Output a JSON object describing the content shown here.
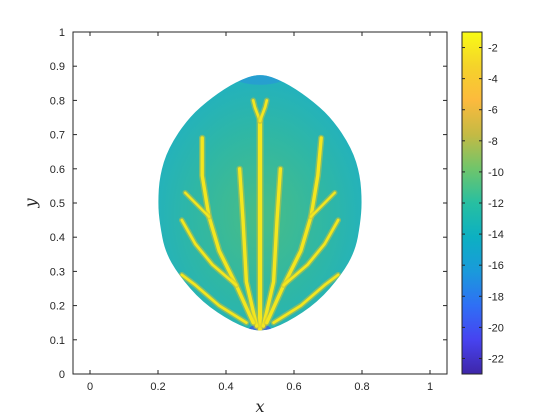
{
  "chart_data": {
    "type": "heatmap",
    "title": "",
    "xlabel": "x",
    "ylabel": "y",
    "xlim": [
      -0.05,
      1.05
    ],
    "ylim": [
      0,
      1
    ],
    "x_ticks": [
      0,
      0.2,
      0.4,
      0.6,
      0.8,
      1
    ],
    "y_ticks": [
      0,
      0.1,
      0.2,
      0.3,
      0.4,
      0.5,
      0.6,
      0.7,
      0.8,
      0.9,
      1
    ],
    "x_tick_labels": [
      "0",
      "0.2",
      "0.4",
      "0.6",
      "0.8",
      "1"
    ],
    "y_tick_labels": [
      "0",
      "0.1",
      "0.2",
      "0.3",
      "0.4",
      "0.5",
      "0.6",
      "0.7",
      "0.8",
      "0.9",
      "1"
    ],
    "colorbar": {
      "colormap": "parula",
      "clim": [
        -23,
        -1
      ],
      "ticks": [
        -2,
        -4,
        -6,
        -8,
        -10,
        -12,
        -14,
        -16,
        -18,
        -20,
        -22
      ],
      "tick_labels": [
        "-2",
        "-4",
        "-6",
        "-8",
        "-10",
        "-12",
        "-14",
        "-16",
        "-18",
        "-20",
        "-22"
      ],
      "colors": [
        "#3e26a8",
        "#4743f0",
        "#2f6ff5",
        "#1a9adb",
        "#0cb0c2",
        "#27bfa1",
        "#6fc56b",
        "#c4ba44",
        "#fcba3d",
        "#f5d32a",
        "#f9fb15"
      ]
    },
    "region": {
      "shape": "leaf-shaped domain",
      "boundary": [
        [
          0.5,
          0.12
        ],
        [
          0.42,
          0.15
        ],
        [
          0.33,
          0.21
        ],
        [
          0.26,
          0.29
        ],
        [
          0.22,
          0.36
        ],
        [
          0.205,
          0.44
        ],
        [
          0.2,
          0.5
        ],
        [
          0.205,
          0.58
        ],
        [
          0.23,
          0.66
        ],
        [
          0.29,
          0.75
        ],
        [
          0.36,
          0.81
        ],
        [
          0.43,
          0.855
        ],
        [
          0.5,
          0.88
        ],
        [
          0.57,
          0.855
        ],
        [
          0.64,
          0.81
        ],
        [
          0.71,
          0.75
        ],
        [
          0.77,
          0.66
        ],
        [
          0.795,
          0.58
        ],
        [
          0.8,
          0.5
        ],
        [
          0.795,
          0.44
        ],
        [
          0.78,
          0.36
        ],
        [
          0.74,
          0.29
        ],
        [
          0.67,
          0.21
        ],
        [
          0.58,
          0.15
        ]
      ],
      "background_value": -11,
      "background_color": "#2fb7a5",
      "apex_values": {
        "top": -14,
        "bottom": -18
      }
    },
    "veins": {
      "value": -1.5,
      "color": "#f4e61e",
      "branches": [
        {
          "name": "main-stem",
          "points": [
            [
              0.5,
              0.13
            ],
            [
              0.5,
              0.35
            ],
            [
              0.5,
              0.55
            ],
            [
              0.5,
              0.74
            ]
          ],
          "width": 0.012
        },
        {
          "name": "top-fork-left",
          "points": [
            [
              0.5,
              0.74
            ],
            [
              0.485,
              0.78
            ],
            [
              0.48,
              0.8
            ]
          ],
          "width": 0.008
        },
        {
          "name": "top-fork-right",
          "points": [
            [
              0.5,
              0.74
            ],
            [
              0.515,
              0.78
            ],
            [
              0.52,
              0.8
            ]
          ],
          "width": 0.008
        },
        {
          "name": "inner-left",
          "points": [
            [
              0.49,
              0.14
            ],
            [
              0.46,
              0.27
            ],
            [
              0.45,
              0.45
            ],
            [
              0.44,
              0.6
            ]
          ],
          "width": 0.01
        },
        {
          "name": "inner-right",
          "points": [
            [
              0.51,
              0.14
            ],
            [
              0.54,
              0.27
            ],
            [
              0.55,
              0.45
            ],
            [
              0.56,
              0.6
            ]
          ],
          "width": 0.01
        },
        {
          "name": "left-main",
          "points": [
            [
              0.48,
              0.15
            ],
            [
              0.43,
              0.26
            ],
            [
              0.38,
              0.36
            ],
            [
              0.35,
              0.46
            ],
            [
              0.33,
              0.58
            ],
            [
              0.33,
              0.69
            ]
          ],
          "width": 0.01
        },
        {
          "name": "right-main",
          "points": [
            [
              0.52,
              0.15
            ],
            [
              0.57,
              0.26
            ],
            [
              0.62,
              0.36
            ],
            [
              0.65,
              0.46
            ],
            [
              0.67,
              0.58
            ],
            [
              0.68,
              0.69
            ]
          ],
          "width": 0.01
        },
        {
          "name": "left-sub-upper",
          "points": [
            [
              0.35,
              0.46
            ],
            [
              0.31,
              0.5
            ],
            [
              0.28,
              0.53
            ]
          ],
          "width": 0.007
        },
        {
          "name": "right-sub-upper",
          "points": [
            [
              0.65,
              0.46
            ],
            [
              0.69,
              0.5
            ],
            [
              0.72,
              0.53
            ]
          ],
          "width": 0.007
        },
        {
          "name": "left-sub-mid",
          "points": [
            [
              0.43,
              0.26
            ],
            [
              0.36,
              0.32
            ],
            [
              0.31,
              0.38
            ],
            [
              0.27,
              0.45
            ]
          ],
          "width": 0.008
        },
        {
          "name": "right-sub-mid",
          "points": [
            [
              0.57,
              0.26
            ],
            [
              0.64,
              0.32
            ],
            [
              0.69,
              0.38
            ],
            [
              0.73,
              0.45
            ]
          ],
          "width": 0.008
        },
        {
          "name": "left-lower",
          "points": [
            [
              0.46,
              0.15
            ],
            [
              0.38,
              0.2
            ],
            [
              0.31,
              0.26
            ],
            [
              0.27,
              0.29
            ]
          ],
          "width": 0.008
        },
        {
          "name": "right-lower",
          "points": [
            [
              0.54,
              0.15
            ],
            [
              0.62,
              0.2
            ],
            [
              0.69,
              0.26
            ],
            [
              0.73,
              0.29
            ]
          ],
          "width": 0.008
        }
      ]
    }
  }
}
